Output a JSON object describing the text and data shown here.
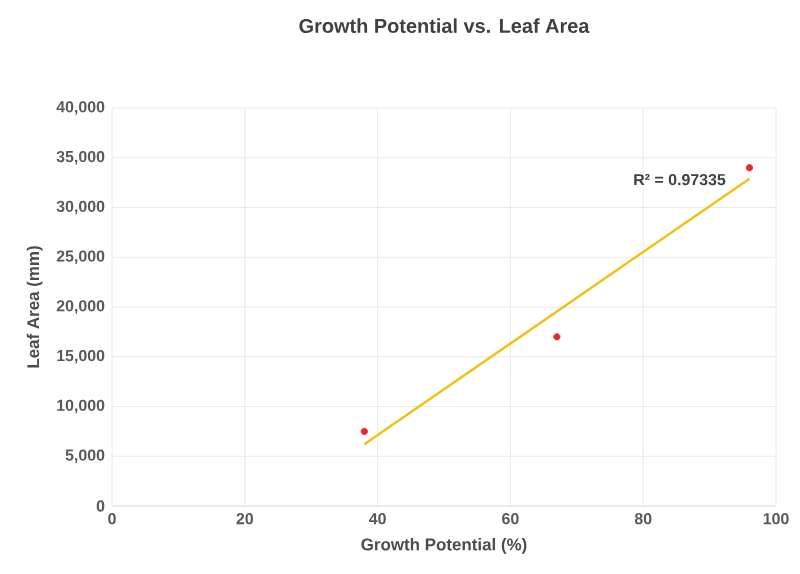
{
  "chart_data": {
    "type": "scatter",
    "title": "Growth Potential vs. Leaf Area",
    "xlabel": "Growth Potential (%)",
    "ylabel": "Leaf Area (mm)",
    "series": [
      {
        "color": "#e8262b",
        "x": [
          38,
          67,
          96
        ],
        "values": [
          7500,
          17000,
          34000
        ],
        "marker": "circle"
      },
      {
        "type": "line",
        "color": "#f2c014",
        "x": [
          38,
          96
        ],
        "values": [
          6200,
          32900
        ],
        "marker": "none"
      }
    ],
    "annotations": [
      "R² = 0.97335"
    ],
    "xlim": [
      0,
      100
    ],
    "xticks": [
      0,
      20,
      40,
      60,
      80,
      100
    ],
    "ylim": [
      0,
      40000
    ],
    "yticks": [
      {
        "value": 0,
        "label": "0"
      },
      {
        "value": 5000,
        "label": "5,000"
      },
      {
        "value": 10000,
        "label": "10,000"
      },
      {
        "value": 15000,
        "label": "15,000"
      },
      {
        "value": 20000,
        "label": "20,000"
      },
      {
        "value": 25000,
        "label": "25,000"
      },
      {
        "value": 30000,
        "label": "30,000"
      },
      {
        "value": 35000,
        "label": "35,000"
      },
      {
        "value": 40000,
        "label": "40,000"
      }
    ],
    "grid": true
  }
}
